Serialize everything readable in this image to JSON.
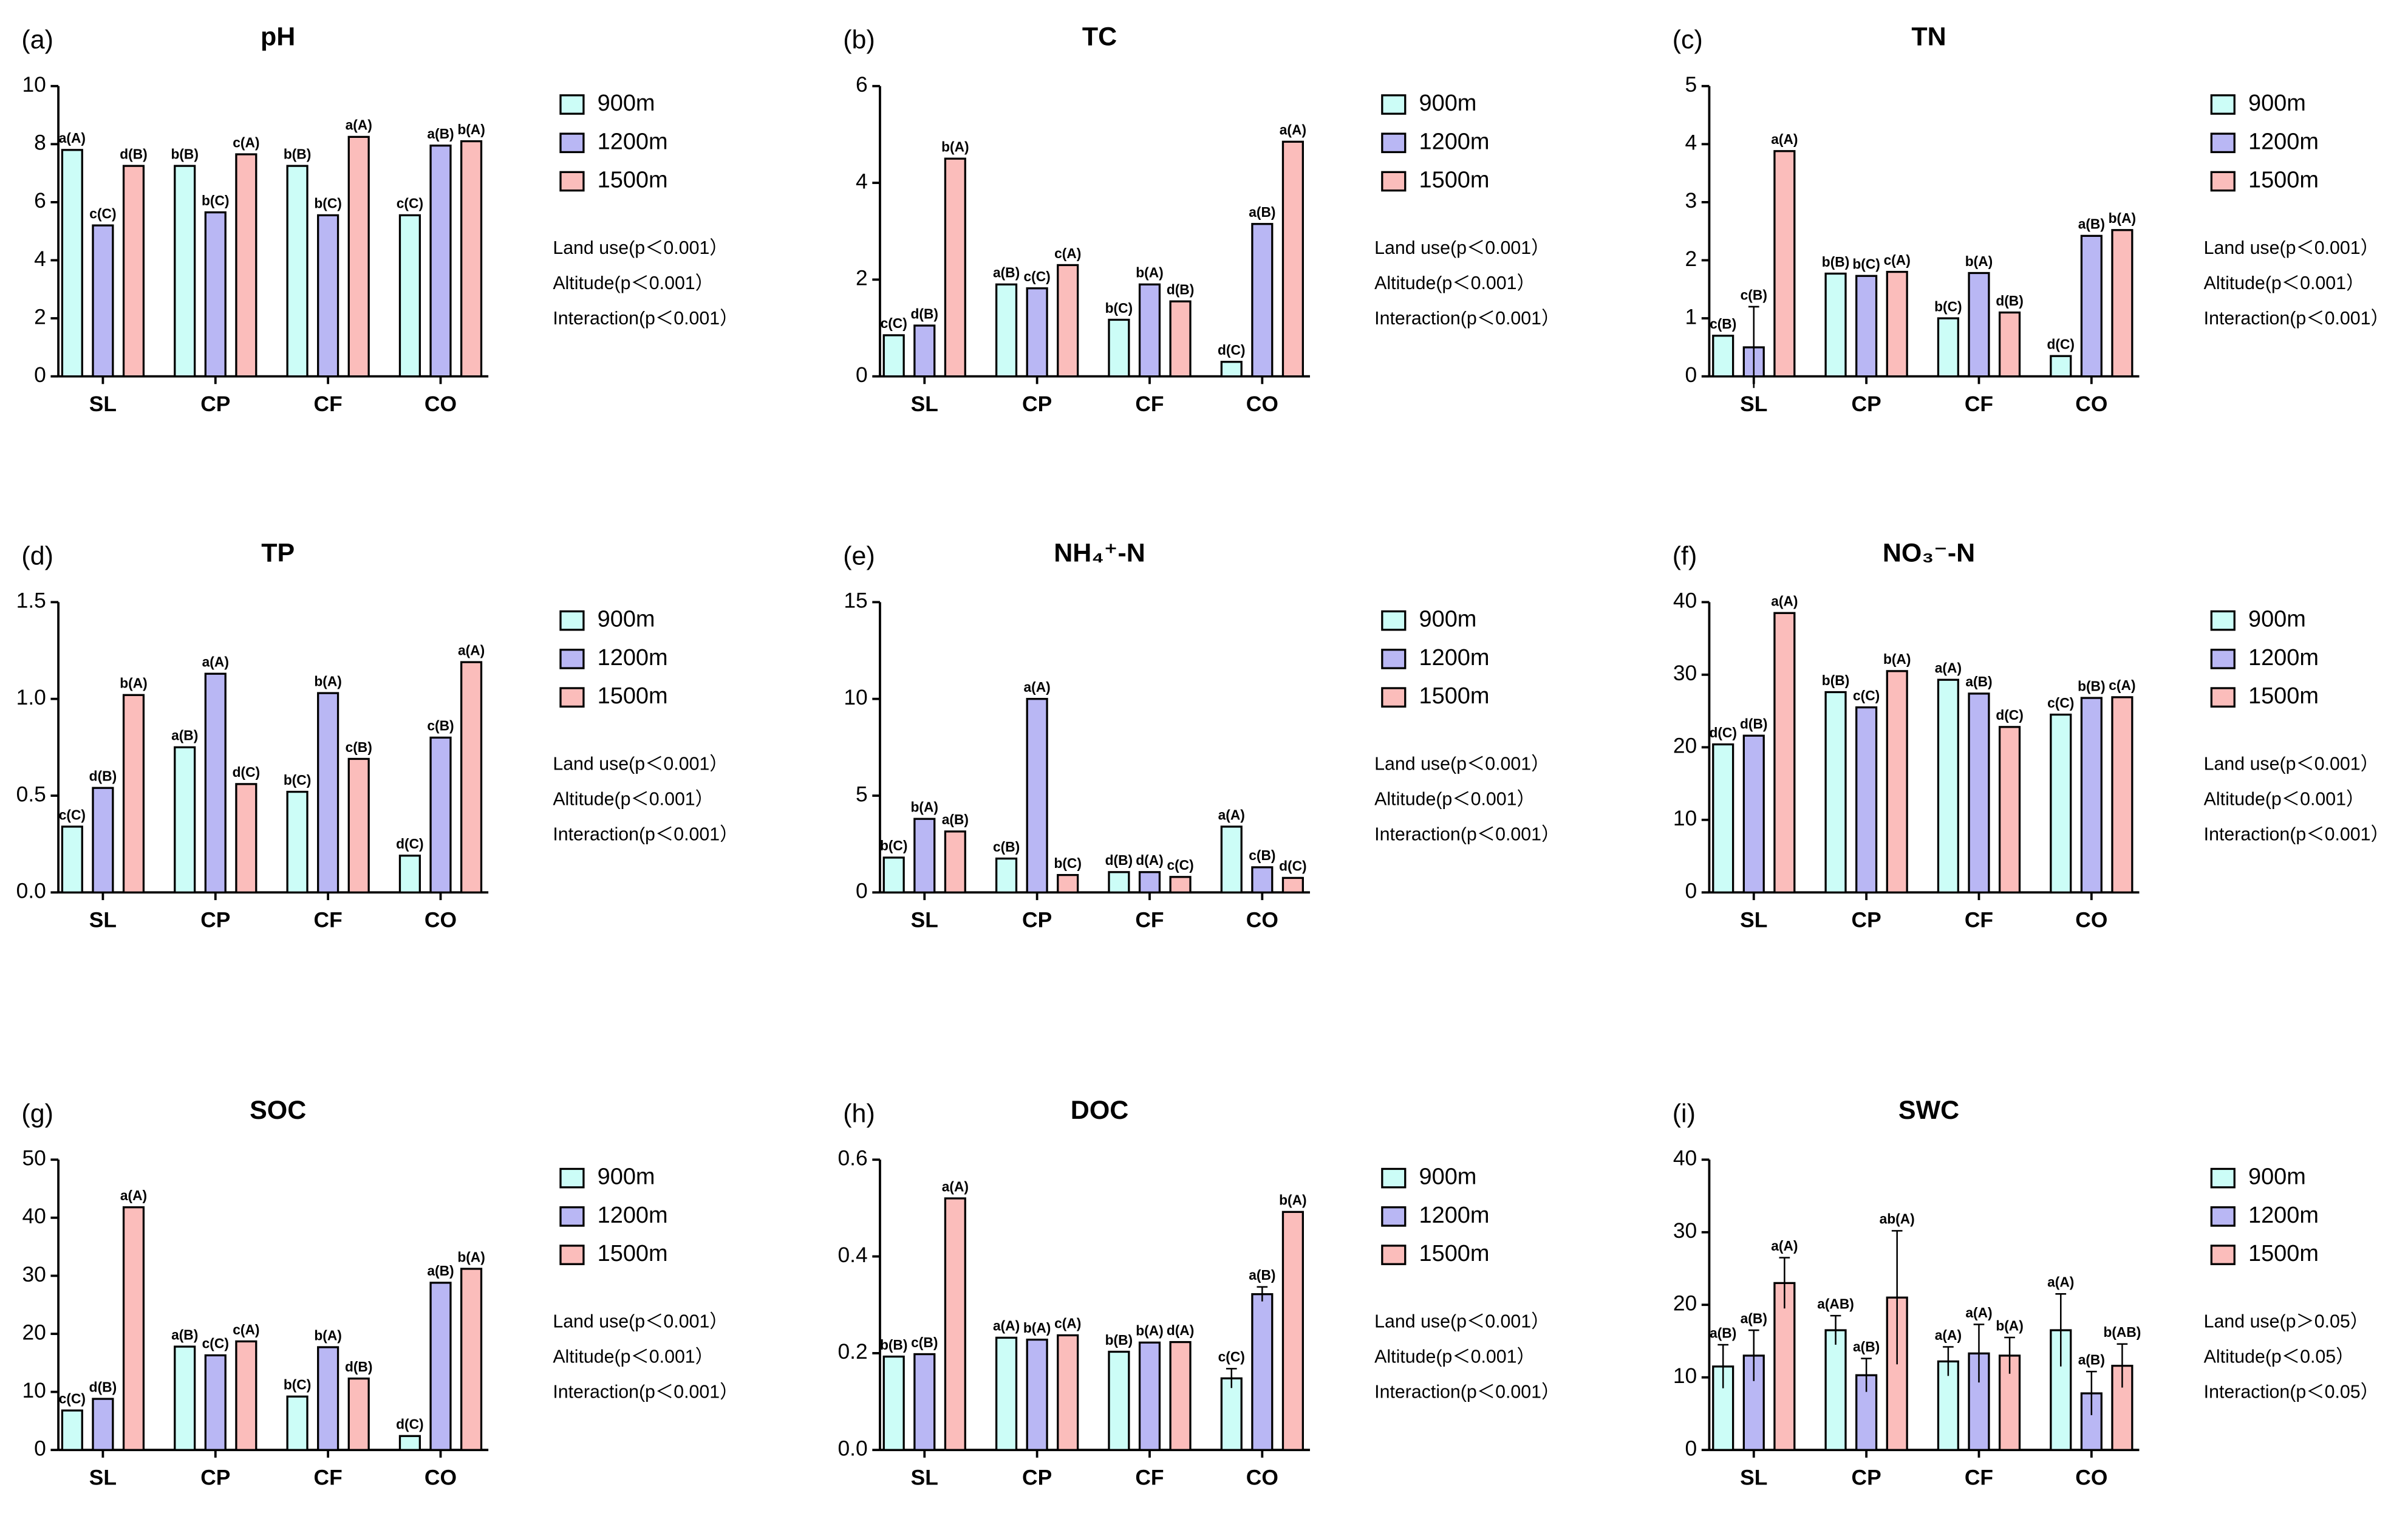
{
  "chart_data": [
    {
      "type": "bar",
      "panel_label": "(a)",
      "title": "pH",
      "categories": [
        "SL",
        "CP",
        "CF",
        "CO"
      ],
      "ylim": [
        0,
        10
      ],
      "yticks": [
        0,
        2,
        4,
        6,
        8,
        10
      ],
      "series": [
        {
          "name": "900m",
          "color": "#ccfdf7",
          "values": [
            7.8,
            7.25,
            7.25,
            5.55
          ],
          "letters": [
            "a(A)",
            "b(B)",
            "b(B)",
            "c(C)"
          ]
        },
        {
          "name": "1200m",
          "color": "#b9b7f4",
          "values": [
            5.2,
            5.65,
            5.55,
            7.95
          ],
          "letters": [
            "c(C)",
            "b(C)",
            "b(C)",
            "a(B)"
          ]
        },
        {
          "name": "1500m",
          "color": "#fbbdbb",
          "values": [
            7.25,
            7.65,
            8.25,
            8.1
          ],
          "letters": [
            "d(B)",
            "c(A)",
            "a(A)",
            "b(A)"
          ]
        }
      ],
      "stats": [
        "Land use(p＜0.001）",
        "Altitude(p＜0.001）",
        "Interaction(p＜0.001）"
      ]
    },
    {
      "type": "bar",
      "panel_label": "(b)",
      "title": "TC",
      "categories": [
        "SL",
        "CP",
        "CF",
        "CO"
      ],
      "ylim": [
        0,
        6
      ],
      "yticks": [
        0,
        2,
        4,
        6
      ],
      "series": [
        {
          "name": "900m",
          "color": "#ccfdf7",
          "values": [
            0.85,
            1.9,
            1.17,
            0.3
          ],
          "letters": [
            "c(C)",
            "a(B)",
            "b(C)",
            "d(C)"
          ]
        },
        {
          "name": "1200m",
          "color": "#b9b7f4",
          "values": [
            1.05,
            1.82,
            1.9,
            3.15
          ],
          "letters": [
            "d(B)",
            "c(C)",
            "b(A)",
            "a(B)"
          ]
        },
        {
          "name": "1500m",
          "color": "#fbbdbb",
          "values": [
            4.5,
            2.3,
            1.55,
            4.85
          ],
          "letters": [
            "b(A)",
            "c(A)",
            "d(B)",
            "a(A)"
          ]
        }
      ],
      "stats": [
        "Land use(p＜0.001）",
        "Altitude(p＜0.001）",
        "Interaction(p＜0.001）"
      ]
    },
    {
      "type": "bar",
      "panel_label": "(c)",
      "title": "TN",
      "categories": [
        "SL",
        "CP",
        "CF",
        "CO"
      ],
      "ylim": [
        0,
        5
      ],
      "yticks": [
        0,
        1,
        2,
        3,
        4,
        5
      ],
      "series": [
        {
          "name": "900m",
          "color": "#ccfdf7",
          "values": [
            0.7,
            1.77,
            1.0,
            0.35
          ],
          "letters": [
            "c(B)",
            "b(B)",
            "b(C)",
            "d(C)"
          ]
        },
        {
          "name": "1200m",
          "color": "#b9b7f4",
          "values": [
            0.5,
            1.73,
            1.78,
            2.42
          ],
          "errors": [
            0.7,
            null,
            null,
            null
          ],
          "letters": [
            "c(B)",
            "b(C)",
            "b(A)",
            "a(B)"
          ]
        },
        {
          "name": "1500m",
          "color": "#fbbdbb",
          "values": [
            3.88,
            1.8,
            1.1,
            2.52
          ],
          "letters": [
            "a(A)",
            "c(A)",
            "d(B)",
            "b(A)"
          ]
        }
      ],
      "stats": [
        "Land use(p＜0.001）",
        "Altitude(p＜0.001）",
        "Interaction(p＜0.001）"
      ]
    },
    {
      "type": "bar",
      "panel_label": "(d)",
      "title": "TP",
      "categories": [
        "SL",
        "CP",
        "CF",
        "CO"
      ],
      "ylim": [
        0,
        1.5
      ],
      "yticks": [
        {
          "value": 0,
          "label": "0.0"
        },
        0.5,
        {
          "value": 1,
          "label": "1.0"
        },
        1.5
      ],
      "series": [
        {
          "name": "900m",
          "color": "#ccfdf7",
          "values": [
            0.34,
            0.75,
            0.52,
            0.19
          ],
          "letters": [
            "c(C)",
            "a(B)",
            "b(C)",
            "d(C)"
          ]
        },
        {
          "name": "1200m",
          "color": "#b9b7f4",
          "values": [
            0.54,
            1.13,
            1.03,
            0.8
          ],
          "letters": [
            "d(B)",
            "a(A)",
            "b(A)",
            "c(B)"
          ]
        },
        {
          "name": "1500m",
          "color": "#fbbdbb",
          "values": [
            1.02,
            0.56,
            0.69,
            1.19
          ],
          "letters": [
            "b(A)",
            "d(C)",
            "c(B)",
            "a(A)"
          ]
        }
      ],
      "stats": [
        "Land use(p＜0.001）",
        "Altitude(p＜0.001）",
        "Interaction(p＜0.001）"
      ]
    },
    {
      "type": "bar",
      "panel_label": "(e)",
      "title": "NH₄⁺-N",
      "categories": [
        "SL",
        "CP",
        "CF",
        "CO"
      ],
      "ylim": [
        0,
        15
      ],
      "yticks": [
        0,
        5,
        10,
        15
      ],
      "series": [
        {
          "name": "900m",
          "color": "#ccfdf7",
          "values": [
            1.8,
            1.75,
            1.05,
            3.4
          ],
          "letters": [
            "b(C)",
            "c(B)",
            "d(B)",
            "a(A)"
          ]
        },
        {
          "name": "1200m",
          "color": "#b9b7f4",
          "values": [
            3.8,
            10.0,
            1.05,
            1.3
          ],
          "letters": [
            "b(A)",
            "a(A)",
            "d(A)",
            "c(B)"
          ]
        },
        {
          "name": "1500m",
          "color": "#fbbdbb",
          "values": [
            3.15,
            0.9,
            0.8,
            0.75
          ],
          "letters": [
            "a(B)",
            "b(C)",
            "c(C)",
            "d(C)"
          ]
        }
      ],
      "stats": [
        "Land use(p＜0.001）",
        "Altitude(p＜0.001）",
        "Interaction(p＜0.001）"
      ]
    },
    {
      "type": "bar",
      "panel_label": "(f)",
      "title": "NO₃⁻-N",
      "categories": [
        "SL",
        "CP",
        "CF",
        "CO"
      ],
      "ylim": [
        0,
        40
      ],
      "yticks": [
        0,
        10,
        20,
        30,
        40
      ],
      "series": [
        {
          "name": "900m",
          "color": "#ccfdf7",
          "values": [
            20.4,
            27.6,
            29.3,
            24.5
          ],
          "letters": [
            "d(C)",
            "b(B)",
            "a(A)",
            "c(C)"
          ]
        },
        {
          "name": "1200m",
          "color": "#b9b7f4",
          "values": [
            21.6,
            25.5,
            27.4,
            26.8
          ],
          "letters": [
            "d(B)",
            "c(C)",
            "a(B)",
            "b(B)"
          ]
        },
        {
          "name": "1500m",
          "color": "#fbbdbb",
          "values": [
            38.5,
            30.5,
            22.8,
            26.9
          ],
          "letters": [
            "a(A)",
            "b(A)",
            "d(C)",
            "c(A)"
          ]
        }
      ],
      "stats": [
        "Land use(p＜0.001）",
        "Altitude(p＜0.001）",
        "Interaction(p＜0.001）"
      ]
    },
    {
      "type": "bar",
      "panel_label": "(g)",
      "title": "SOC",
      "categories": [
        "SL",
        "CP",
        "CF",
        "CO"
      ],
      "ylim": [
        0,
        50
      ],
      "yticks": [
        0,
        10,
        20,
        30,
        40,
        50
      ],
      "series": [
        {
          "name": "900m",
          "color": "#ccfdf7",
          "values": [
            6.8,
            17.8,
            9.2,
            2.4
          ],
          "letters": [
            "c(C)",
            "a(B)",
            "b(C)",
            "d(C)"
          ]
        },
        {
          "name": "1200m",
          "color": "#b9b7f4",
          "values": [
            8.8,
            16.3,
            17.7,
            28.8
          ],
          "letters": [
            "d(B)",
            "c(C)",
            "b(A)",
            "a(B)"
          ]
        },
        {
          "name": "1500m",
          "color": "#fbbdbb",
          "values": [
            41.8,
            18.7,
            12.3,
            31.2
          ],
          "letters": [
            "a(A)",
            "c(A)",
            "d(B)",
            "b(A)"
          ]
        }
      ],
      "stats": [
        "Land use(p＜0.001）",
        "Altitude(p＜0.001）",
        "Interaction(p＜0.001）"
      ]
    },
    {
      "type": "bar",
      "panel_label": "(h)",
      "title": "DOC",
      "categories": [
        "SL",
        "CP",
        "CF",
        "CO"
      ],
      "ylim": [
        0,
        0.6
      ],
      "yticks": [
        {
          "value": 0,
          "label": "0.0"
        },
        0.2,
        0.4,
        0.6
      ],
      "series": [
        {
          "name": "900m",
          "color": "#ccfdf7",
          "values": [
            0.193,
            0.232,
            0.203,
            0.148
          ],
          "errors": [
            null,
            null,
            null,
            0.02
          ],
          "letters": [
            "b(B)",
            "a(A)",
            "b(B)",
            "c(C)"
          ]
        },
        {
          "name": "1200m",
          "color": "#b9b7f4",
          "values": [
            0.198,
            0.228,
            0.222,
            0.322
          ],
          "errors": [
            null,
            null,
            null,
            0.015
          ],
          "letters": [
            "c(B)",
            "b(A)",
            "b(A)",
            "a(B)"
          ]
        },
        {
          "name": "1500m",
          "color": "#fbbdbb",
          "values": [
            0.52,
            0.237,
            0.223,
            0.492
          ],
          "letters": [
            "a(A)",
            "c(A)",
            "d(A)",
            "b(A)"
          ]
        }
      ],
      "stats": [
        "Land use(p＜0.001）",
        "Altitude(p＜0.001）",
        "Interaction(p＜0.001）"
      ]
    },
    {
      "type": "bar",
      "panel_label": "(i)",
      "title": "SWC",
      "categories": [
        "SL",
        "CP",
        "CF",
        "CO"
      ],
      "ylim": [
        0,
        40
      ],
      "yticks": [
        0,
        10,
        20,
        30,
        40
      ],
      "series": [
        {
          "name": "900m",
          "color": "#ccfdf7",
          "values": [
            11.5,
            16.5,
            12.2,
            16.5
          ],
          "errors": [
            3,
            2,
            2,
            5
          ],
          "letters": [
            "a(B)",
            "a(AB)",
            "a(A)",
            "a(A)"
          ]
        },
        {
          "name": "1200m",
          "color": "#b9b7f4",
          "values": [
            13,
            10.3,
            13.3,
            7.8
          ],
          "errors": [
            3.5,
            2.3,
            4,
            3
          ],
          "letters": [
            "a(B)",
            "a(B)",
            "a(A)",
            "a(B)"
          ]
        },
        {
          "name": "1500m",
          "color": "#fbbdbb",
          "values": [
            23,
            21,
            13,
            11.6
          ],
          "errors": [
            3.5,
            9.2,
            2.5,
            3
          ],
          "letters": [
            "a(A)",
            "ab(A)",
            "b(A)",
            "b(AB)"
          ]
        }
      ],
      "stats": [
        "Land use(p＞0.05）",
        "Altitude(p＜0.05）",
        "Interaction(p＜0.05）"
      ]
    }
  ]
}
